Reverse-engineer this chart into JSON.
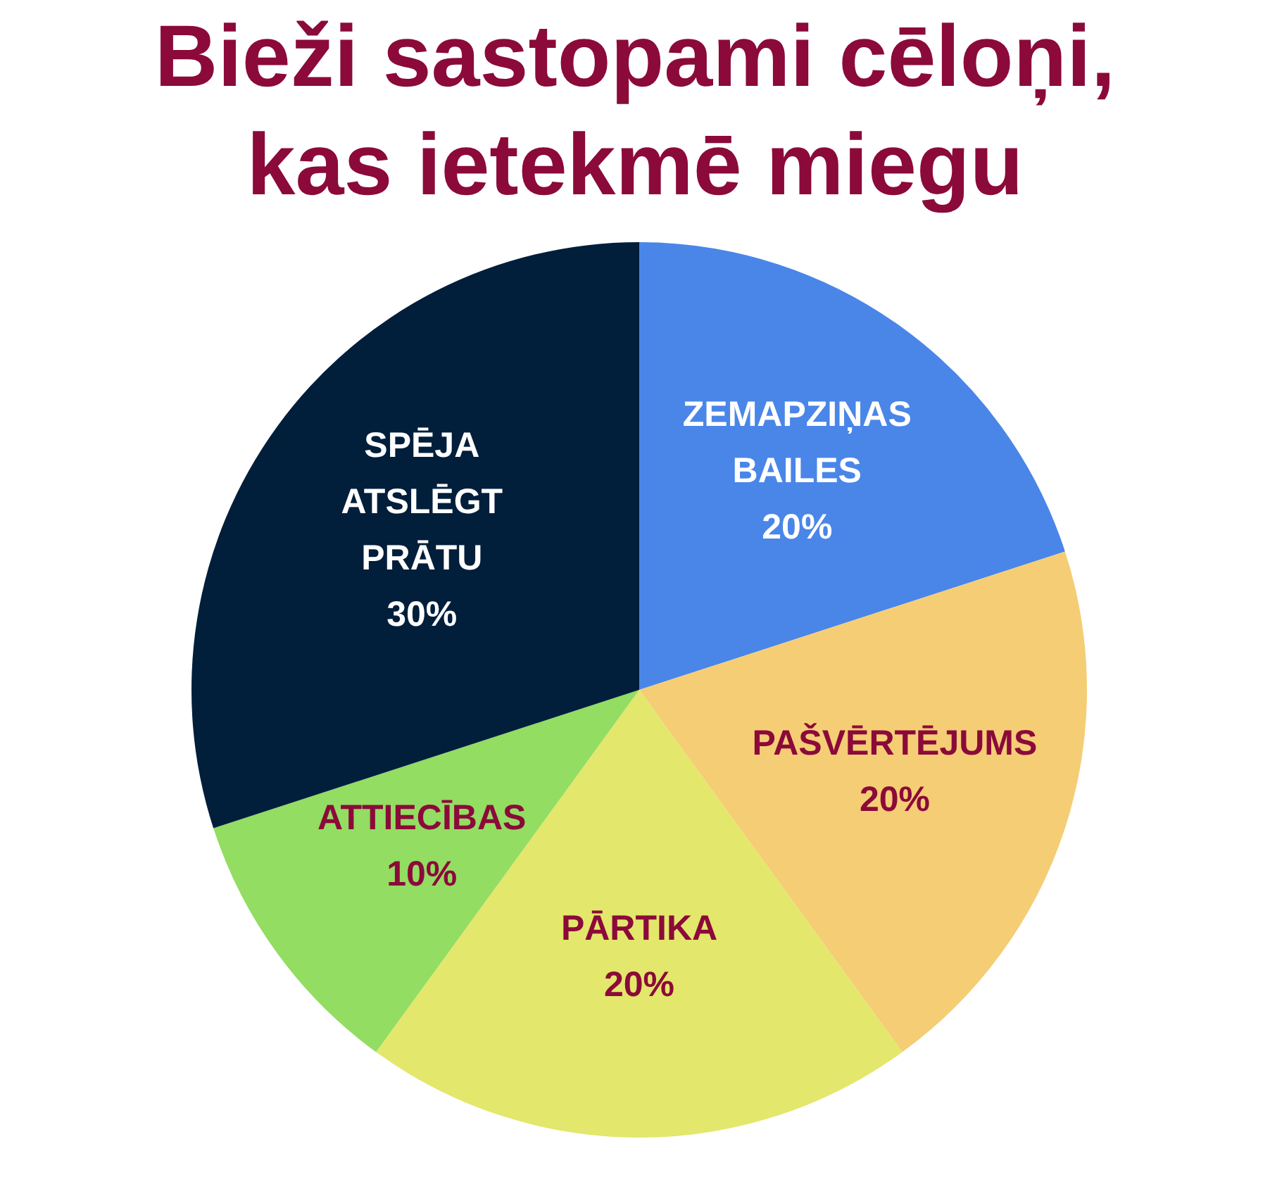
{
  "chart_data": {
    "type": "pie",
    "title": "Bieži sastopami cēloņi, kas ietekmē miegu",
    "categories": [
      "ZEMAPZIŅAS BAILES",
      "PAŠVĒRTĒJUMS",
      "PĀRTIKA",
      "ATTIECĪBAS",
      "SPĒJA ATSLĒGT PRĀTU"
    ],
    "values": [
      20,
      20,
      20,
      10,
      30
    ],
    "colors": [
      "#4a86e8",
      "#f5cd75",
      "#e3e76b",
      "#92dd62",
      "#011e3b"
    ],
    "value_labels": [
      "20%",
      "20%",
      "20%",
      "10%",
      "30%"
    ]
  }
}
